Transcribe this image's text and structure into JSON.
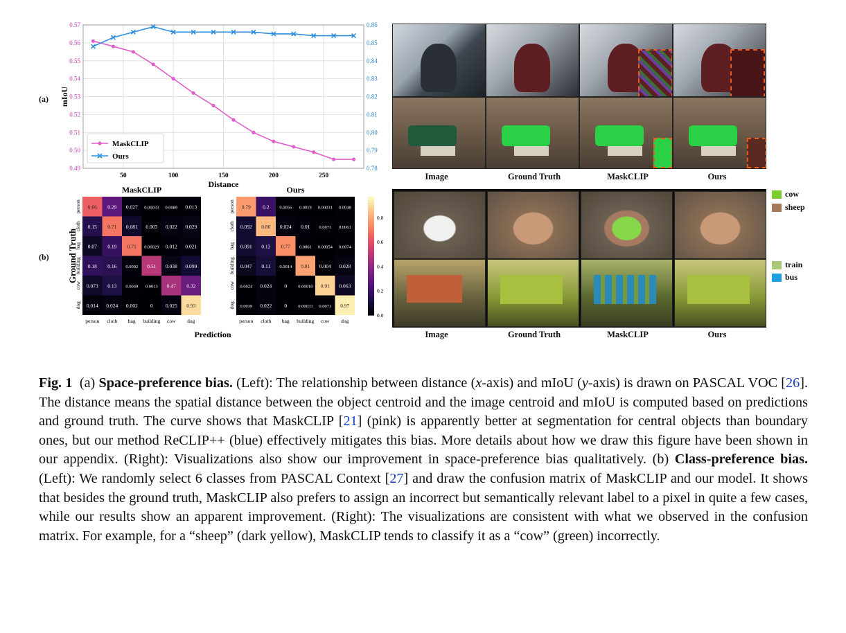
{
  "panel_a_label": "(a)",
  "panel_b_label": "(b)",
  "chart_data": [
    {
      "type": "line",
      "xlabel": "Distance",
      "ylabel": "mIoU",
      "xticks": [
        50,
        100,
        150,
        200,
        250
      ],
      "xlim": [
        10,
        290
      ],
      "y_left_lim": [
        0.49,
        0.57
      ],
      "y_left_ticks": [
        "0.49",
        "0.50",
        "0.51",
        "0.52",
        "0.53",
        "0.54",
        "0.55",
        "0.56",
        "0.57"
      ],
      "y_right_lim": [
        0.78,
        0.86
      ],
      "y_right_ticks": [
        "0.78",
        "0.79",
        "0.80",
        "0.81",
        "0.82",
        "0.83",
        "0.84",
        "0.85",
        "0.86"
      ],
      "grid": true,
      "legend_position": "lower-left",
      "series": [
        {
          "name": "MaskCLIP",
          "axis": "left",
          "color": "#e05fcc",
          "marker": "circle",
          "x": [
            20,
            40,
            60,
            80,
            100,
            120,
            140,
            160,
            180,
            200,
            220,
            240,
            260,
            280
          ],
          "y": [
            0.561,
            0.558,
            0.555,
            0.548,
            0.54,
            0.532,
            0.525,
            0.517,
            0.51,
            0.505,
            0.502,
            0.499,
            0.495,
            0.495
          ]
        },
        {
          "name": "Ours",
          "axis": "right",
          "color": "#2f8fdc",
          "marker": "x",
          "x": [
            20,
            40,
            60,
            80,
            100,
            120,
            140,
            160,
            180,
            200,
            220,
            240,
            260,
            280
          ],
          "y": [
            0.848,
            0.853,
            0.856,
            0.859,
            0.856,
            0.856,
            0.856,
            0.856,
            0.856,
            0.855,
            0.855,
            0.854,
            0.854,
            0.854
          ]
        }
      ]
    },
    {
      "type": "heatmap",
      "title": "MaskCLIP",
      "ylabel": "Ground Truth",
      "xlabel": "Prediction",
      "labels": [
        "person",
        "cloth",
        "bag",
        "building",
        "cow",
        "dog"
      ],
      "matrix": [
        [
          "0.66",
          "0.29",
          "0.027",
          "0.00033",
          "0.0089",
          "0.013"
        ],
        [
          "0.15",
          "0.71",
          "0.081",
          "0.003",
          "0.022",
          "0.029"
        ],
        [
          "0.07",
          "0.19",
          "0.71",
          "0.00029",
          "0.012",
          "0.021"
        ],
        [
          "0.18",
          "0.16",
          "0.0092",
          "0.51",
          "0.038",
          "0.099"
        ],
        [
          "0.073",
          "0.13",
          "0.0049",
          "0.0013",
          "0.47",
          "0.32"
        ],
        [
          "0.014",
          "0.024",
          "0.002",
          "0",
          "0.025",
          "0.93"
        ]
      ]
    },
    {
      "type": "heatmap",
      "title": "Ours",
      "labels": [
        "person",
        "cloth",
        "bag",
        "building",
        "cow",
        "dog"
      ],
      "matrix": [
        [
          "0.79",
          "0.2",
          "0.0056",
          "0.0019",
          "0.00031",
          "0.0048"
        ],
        [
          "0.092",
          "0.86",
          "0.024",
          "0.01",
          "0.0071",
          "0.0061"
        ],
        [
          "0.091",
          "0.13",
          "0.77",
          "0.0061",
          "0.00054",
          "0.0074"
        ],
        [
          "0.047",
          "0.11",
          "0.0014",
          "0.81",
          "0.004",
          "0.028"
        ],
        [
          "0.0024",
          "0.024",
          "0",
          "0.00018",
          "0.91",
          "0.063"
        ],
        [
          "0.0039",
          "0.022",
          "0",
          "0.00033",
          "0.0071",
          "0.97"
        ]
      ],
      "colorbar_ticks": [
        "0.0",
        "0.2",
        "0.4",
        "0.6",
        "0.8"
      ]
    }
  ],
  "vis_a_columns": [
    "Image",
    "Ground Truth",
    "MaskCLIP",
    "Ours"
  ],
  "vis_b_columns": [
    "Image",
    "Ground Truth",
    "MaskCLIP",
    "Ours"
  ],
  "legend_top": [
    {
      "label": "cow",
      "color": "#7ccc2e"
    },
    {
      "label": "sheep",
      "color": "#a47a5a"
    }
  ],
  "legend_bottom": [
    {
      "label": "train",
      "color": "#a8c878"
    },
    {
      "label": "bus",
      "color": "#1e9fe0"
    }
  ],
  "caption": {
    "fig": "Fig. 1",
    "p1": "(a)",
    "h1": "Space-preference bias.",
    "t1": " (Left): The relationship between distance (",
    "x": "x",
    "t2": "-axis) and mIoU (",
    "y": "y",
    "t3": "-axis) is drawn on PASCAL VOC [",
    "c26": "26",
    "t4": "]. The distance means the spatial distance between the object centroid and the image centroid and mIoU is computed based on predictions and ground truth. The curve shows that MaskCLIP [",
    "c21": "21",
    "t5": "] (pink) is apparently better at segmentation for central objects than boundary ones, but our method ReCLIP++ (blue) effectively mitigates this bias. More details about how we draw this figure have been shown in our appendix. (Right): Visualizations also show our improvement in space-preference bias qualitatively. (b) ",
    "h2": "Class-preference bias.",
    "t6": " (Left): We randomly select 6 classes from PASCAL Context [",
    "c27": "27",
    "t7": "] and draw the confusion matrix of MaskCLIP and our model. It shows that besides the ground truth, MaskCLIP also prefers to assign an incorrect but semantically relevant label to a pixel in quite a few cases, while our results show an apparent improvement. (Right): The visualizations are consistent with what we observed in the confusion matrix. For example, for a “sheep” (dark yellow), MaskCLIP tends to classify it as a “cow” (green) incorrectly."
  }
}
